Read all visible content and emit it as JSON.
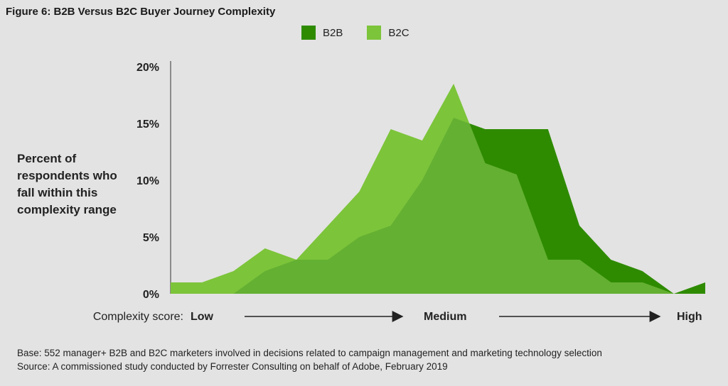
{
  "title": "Figure 6: B2B Versus B2C Buyer Journey Complexity",
  "ylabel": "Percent of respondents who fall within this complexity range",
  "xaxis": {
    "caption": "Complexity score:",
    "low": "Low",
    "medium": "Medium",
    "high": "High"
  },
  "footer": {
    "base": "Base: 552 manager+ B2B and B2C marketers involved in decisions related to campaign management and marketing technology selection",
    "source": "Source: A commissioned study conducted by Forrester Consulting on behalf of Adobe, February 2019"
  },
  "colors": {
    "b2b": "#2e8b00",
    "b2c": "#7cc43a",
    "overlap": "#64b032",
    "background": "#e3e3e3"
  },
  "chart_data": {
    "type": "area",
    "x": [
      1,
      2,
      3,
      4,
      5,
      6,
      7,
      8,
      9,
      10,
      11,
      12,
      13,
      14,
      15,
      16,
      17,
      18
    ],
    "series": [
      {
        "name": "B2B",
        "values": [
          0,
          0,
          0,
          2,
          3,
          3,
          5,
          6,
          10,
          15.5,
          14.5,
          14.5,
          14.5,
          6,
          3,
          2,
          0,
          1
        ]
      },
      {
        "name": "B2C",
        "values": [
          1,
          1,
          2,
          4,
          3,
          6,
          9,
          14.5,
          13.5,
          18.5,
          11.5,
          10.5,
          3,
          3,
          1,
          1,
          0,
          0
        ]
      }
    ],
    "yticks": [
      "0%",
      "5%",
      "10%",
      "15%",
      "20%"
    ],
    "ylim": [
      0,
      20
    ],
    "grid": false,
    "legend": "top-center"
  }
}
